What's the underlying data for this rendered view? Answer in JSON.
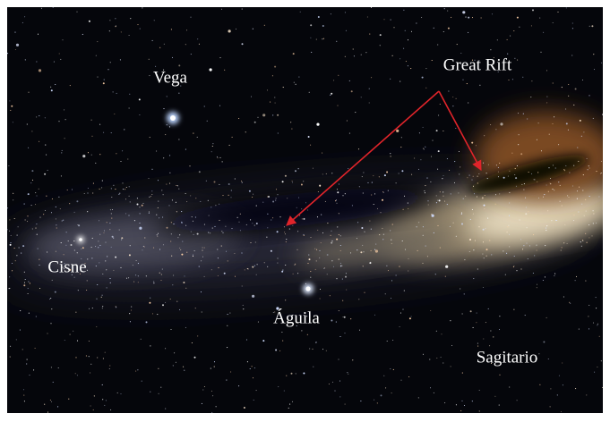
{
  "labels": [
    "Vega",
    "Great Rift",
    "Cisne",
    "Águila",
    "Sagitario"
  ]
}
